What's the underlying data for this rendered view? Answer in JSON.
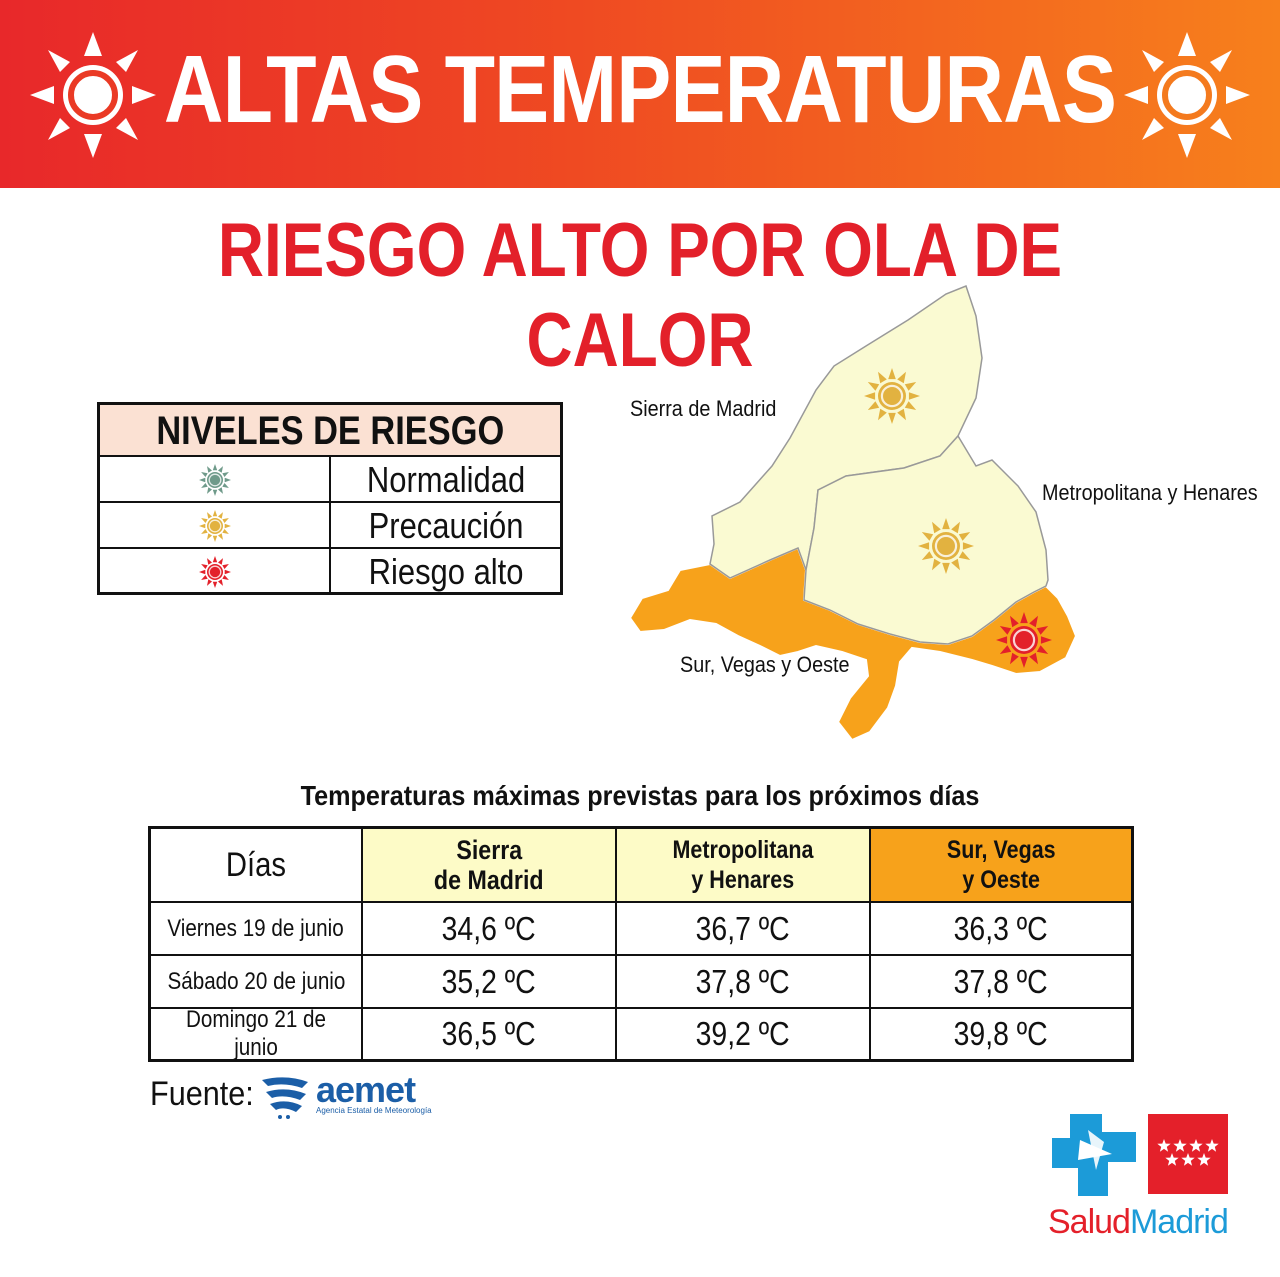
{
  "header": {
    "title": "ALTAS TEMPERATURAS"
  },
  "subtitle": "RIESGO ALTO POR OLA DE CALOR",
  "legend": {
    "title": "NIVELES DE RIESGO",
    "items": [
      {
        "label": "Normalidad",
        "color": "#6f9a8a",
        "icon": "sun-icon"
      },
      {
        "label": "Precaución",
        "color": "#e2b240",
        "icon": "sun-icon"
      },
      {
        "label": "Riesgo alto",
        "color": "#e3202a",
        "icon": "sun-icon"
      }
    ]
  },
  "map": {
    "regions": [
      {
        "label": "Sierra de Madrid",
        "fill": "#fafad2",
        "level": "Precaución"
      },
      {
        "label": "Metropolitana y Henares",
        "fill": "#fafad2",
        "level": "Precaución"
      },
      {
        "label": "Sur, Vegas y Oeste",
        "fill": "#f7a21b",
        "level": "Riesgo alto"
      }
    ]
  },
  "table": {
    "title": "Temperaturas máximas previstas para los próximos días",
    "headers": {
      "days": "Días",
      "sierra_1": "Sierra",
      "sierra_2": "de Madrid",
      "metro_1": "Metropolitana",
      "metro_2": "y Henares",
      "sur_1": "Sur, Vegas",
      "sur_2": "y Oeste"
    },
    "header_colors": {
      "sierra": "#fdfbc7",
      "metro": "#fdfbc7",
      "sur": "#f7a21b"
    },
    "rows": [
      {
        "day": "Viernes 19 de junio",
        "sierra": "34,6 ºC",
        "metro": "36,7 ºC",
        "sur": "36,3 ºC"
      },
      {
        "day": "Sábado 20 de junio",
        "sierra": "35,2 ºC",
        "metro": "37,8 ºC",
        "sur": "37,8 ºC"
      },
      {
        "day": "Domingo 21 de junio",
        "sierra": "36,5 ºC",
        "metro": "39,2 ºC",
        "sur": "39,8 ºC"
      }
    ]
  },
  "footer": {
    "source_label": "Fuente:",
    "source_logo": "aemet",
    "source_tagline": "Agencia Estatal de Meteorología",
    "brand_left": "Salud",
    "brand_right": "Madrid"
  }
}
